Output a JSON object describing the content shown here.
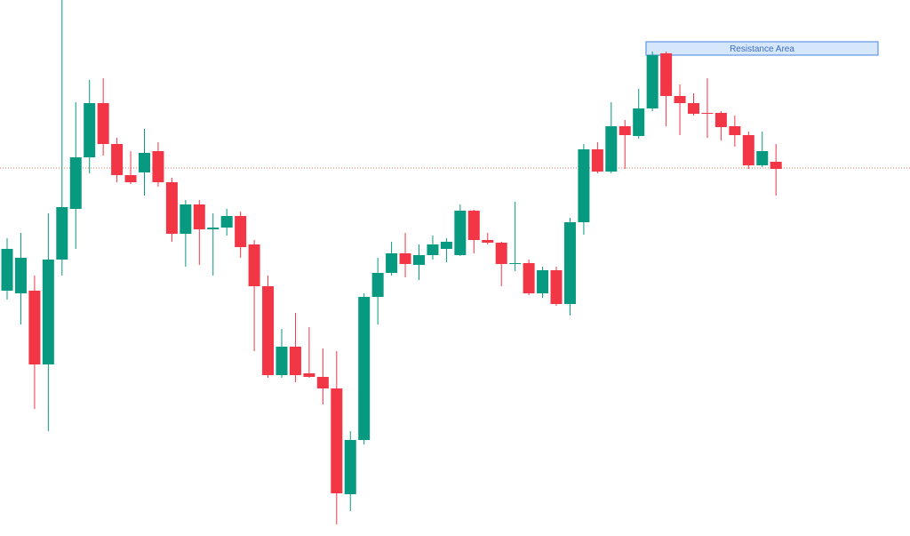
{
  "chart_data": {
    "type": "candlestick",
    "ylim": [
      0,
      603
    ],
    "up_color": "#089981",
    "down_color": "#f23645",
    "open": [
      276,
      273,
      276,
      193,
      311,
      368,
      426,
      487,
      441,
      406,
      409,
      433,
      398,
      340,
      373,
      345,
      347,
      360,
      328,
      281,
      181,
      213,
      183,
      179,
      166,
      47,
      108,
      269,
      296,
      318,
      305,
      316,
      323,
      316,
      366,
      333,
      330,
      306,
      307,
      273,
      299,
      261,
      353,
      435,
      410,
      461,
      450,
      481,
      543,
      495,
      487,
      476,
      476,
      461,
      451,
      417,
      421
    ],
    "high": [
      335,
      341,
      293,
      363,
      603,
      488,
      513,
      515,
      448,
      433,
      458,
      443,
      403,
      378,
      378,
      363,
      368,
      365,
      333,
      293,
      233,
      251,
      235,
      211,
      208,
      118,
      273,
      313,
      331,
      341,
      328,
      338,
      335,
      373,
      367,
      341,
      331,
      376,
      311,
      303,
      303,
      358,
      441,
      443,
      488,
      468,
      503,
      545,
      545,
      508,
      498,
      515,
      478,
      473,
      455,
      455,
      441
    ],
    "low": [
      266,
      238,
      143,
      118,
      293,
      323,
      408,
      428,
      398,
      396,
      383,
      393,
      331,
      303,
      305,
      293,
      338,
      313,
      208,
      178,
      178,
      173,
      178,
      148,
      13,
      28,
      103,
      238,
      293,
      291,
      288,
      311,
      308,
      315,
      318,
      328,
      281,
      298,
      271,
      268,
      259,
      248,
      339,
      408,
      408,
      413,
      447,
      478,
      461,
      451,
      473,
      448,
      445,
      438,
      413,
      415,
      383
    ],
    "close": [
      323,
      313,
      193,
      311,
      370,
      426,
      487,
      441,
      406,
      398,
      431,
      398,
      340,
      373,
      345,
      347,
      360,
      325,
      281,
      181,
      213,
      181,
      179,
      166,
      48,
      108,
      269,
      296,
      318,
      306,
      316,
      328,
      331,
      366,
      333,
      330,
      306,
      307,
      273,
      299,
      261,
      353,
      435,
      410,
      461,
      451,
      481,
      541,
      495,
      487,
      475,
      475,
      460,
      451,
      417,
      433,
      413
    ],
    "price_line": {
      "value": 414,
      "color": "#e8735a"
    },
    "resistance": {
      "label": "Resistance Area",
      "range": [
        541,
        556
      ],
      "fill": "#d6e6fb",
      "stroke": "#7aa9e8",
      "text_color": "#3d6fc4"
    }
  }
}
